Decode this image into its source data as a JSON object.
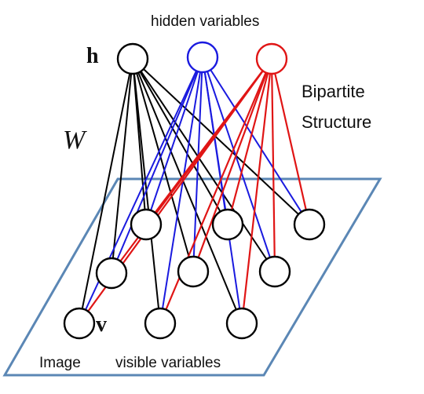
{
  "labels": {
    "hidden_title": "hidden variables",
    "h_symbol": "h",
    "w_symbol": "W",
    "bipartite_line1": "Bipartite",
    "bipartite_line2": "Structure",
    "v_symbol": "v",
    "image": "Image",
    "visible_title": "visible variables"
  },
  "colors": {
    "hidden_black": "#000000",
    "hidden_blue": "#1a1adf",
    "hidden_red": "#e01515",
    "plane_border": "#5b87b5",
    "bipartite_text": "#c21b1b"
  },
  "graph": {
    "hidden_units": [
      "black",
      "blue",
      "red"
    ],
    "visible_units": 9,
    "connectivity": "fully connected bipartite"
  }
}
